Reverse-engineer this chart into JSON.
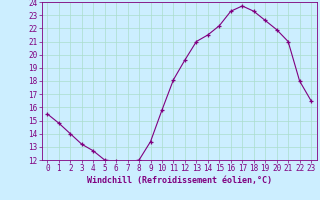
{
  "x": [
    0,
    1,
    2,
    3,
    4,
    5,
    6,
    7,
    8,
    9,
    10,
    11,
    12,
    13,
    14,
    15,
    16,
    17,
    18,
    19,
    20,
    21,
    22,
    23
  ],
  "y": [
    15.5,
    14.8,
    14.0,
    13.2,
    12.7,
    12.0,
    11.9,
    11.85,
    12.0,
    13.4,
    15.8,
    18.1,
    19.6,
    21.0,
    21.5,
    22.2,
    23.3,
    23.7,
    23.3,
    22.6,
    21.9,
    21.0,
    18.0,
    16.5
  ],
  "ylim": [
    12,
    24
  ],
  "xlim": [
    -0.5,
    23.5
  ],
  "yticks": [
    12,
    13,
    14,
    15,
    16,
    17,
    18,
    19,
    20,
    21,
    22,
    23,
    24
  ],
  "xticks": [
    0,
    1,
    2,
    3,
    4,
    5,
    6,
    7,
    8,
    9,
    10,
    11,
    12,
    13,
    14,
    15,
    16,
    17,
    18,
    19,
    20,
    21,
    22,
    23
  ],
  "line_color": "#800080",
  "marker": "+",
  "bg_color": "#cceeff",
  "grid_color": "#aaddcc",
  "xlabel": "Windchill (Refroidissement éolien,°C)",
  "xlabel_color": "#800080",
  "tick_color": "#800080",
  "label_fontsize": 6.0,
  "tick_fontsize": 5.5
}
